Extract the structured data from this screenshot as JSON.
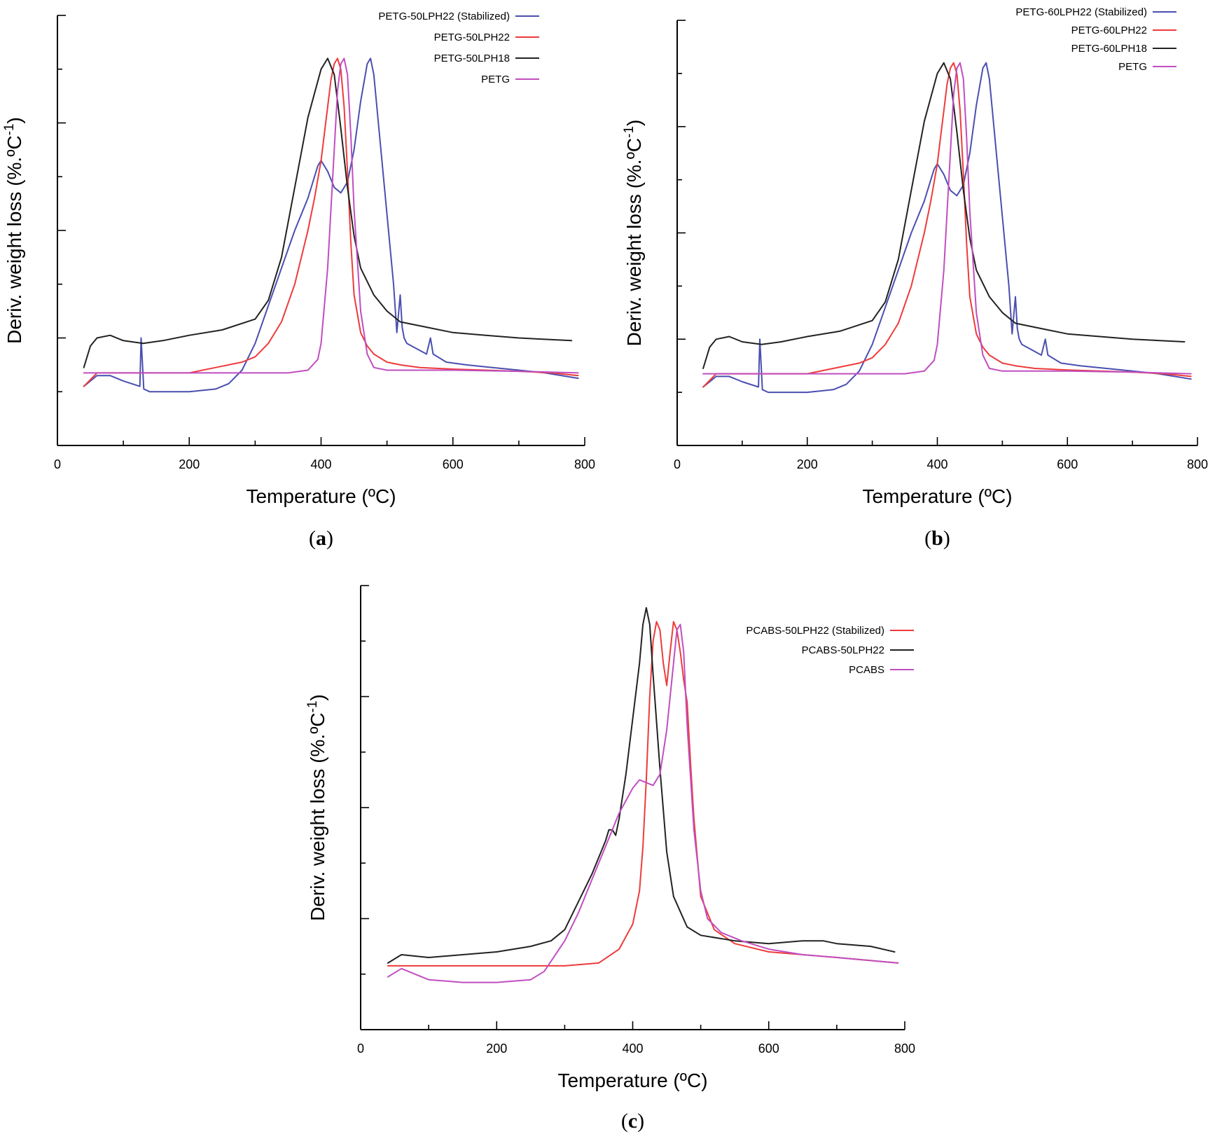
{
  "colors": {
    "blue": "#4a4fb0",
    "red": "#ee3b3b",
    "black": "#222222",
    "magenta": "#c04ec0"
  },
  "chart_data": [
    {
      "type": "line",
      "panel": "(a)",
      "panel_letter": "a",
      "xlabel": "Temperature (ºC)",
      "ylabel": "Deriv. weight loss (%.ºC",
      "ylabel_sup": "-1",
      "ylabel_tail": ")",
      "xlim": [
        0,
        800
      ],
      "xticks": [
        0,
        200,
        400,
        600,
        800
      ],
      "ylim": [
        0,
        8
      ],
      "yticks_count": 8,
      "yticks_labeled": false,
      "legend_position": "top-right",
      "series": [
        {
          "name": "PETG-50LPH22 (Stabilized)",
          "color": "#4a4fb0",
          "x": [
            40,
            60,
            80,
            100,
            125,
            127,
            131,
            140,
            160,
            200,
            240,
            260,
            280,
            300,
            320,
            340,
            360,
            380,
            395,
            400,
            410,
            420,
            430,
            440,
            450,
            460,
            470,
            475,
            480,
            490,
            500,
            510,
            515,
            520,
            523,
            526,
            530,
            545,
            560,
            566,
            570,
            590,
            620,
            660,
            700,
            740,
            790
          ],
          "y": [
            1.1,
            1.3,
            1.3,
            1.2,
            1.1,
            2.0,
            1.05,
            1.0,
            1.0,
            1.0,
            1.05,
            1.15,
            1.4,
            1.9,
            2.6,
            3.3,
            4.0,
            4.6,
            5.2,
            5.3,
            5.1,
            4.8,
            4.7,
            4.9,
            5.5,
            6.4,
            7.1,
            7.2,
            6.9,
            5.6,
            4.3,
            3.0,
            2.1,
            2.8,
            2.2,
            2.0,
            1.9,
            1.8,
            1.7,
            2.0,
            1.7,
            1.55,
            1.5,
            1.45,
            1.4,
            1.35,
            1.25
          ]
        },
        {
          "name": "PETG-50LPH22",
          "color": "#ee3b3b",
          "x": [
            40,
            60,
            100,
            150,
            200,
            240,
            280,
            300,
            320,
            340,
            360,
            380,
            390,
            400,
            405,
            410,
            415,
            420,
            425,
            430,
            435,
            440,
            445,
            450,
            460,
            470,
            480,
            500,
            520,
            550,
            600,
            650,
            700,
            750,
            790
          ],
          "y": [
            1.1,
            1.35,
            1.35,
            1.35,
            1.35,
            1.45,
            1.55,
            1.65,
            1.9,
            2.3,
            3.0,
            4.0,
            4.6,
            5.3,
            5.8,
            6.3,
            6.8,
            7.1,
            7.2,
            7.0,
            6.3,
            5.1,
            3.8,
            2.8,
            2.1,
            1.85,
            1.7,
            1.55,
            1.5,
            1.45,
            1.42,
            1.4,
            1.38,
            1.35,
            1.3
          ]
        },
        {
          "name": "PETG-50LPH18",
          "color": "#222222",
          "x": [
            40,
            50,
            60,
            80,
            100,
            130,
            160,
            200,
            250,
            300,
            320,
            340,
            360,
            380,
            400,
            410,
            420,
            430,
            440,
            450,
            460,
            480,
            500,
            520,
            560,
            600,
            650,
            700,
            780
          ],
          "y": [
            1.45,
            1.85,
            2.0,
            2.05,
            1.95,
            1.9,
            1.95,
            2.05,
            2.15,
            2.35,
            2.7,
            3.5,
            4.8,
            6.1,
            7.0,
            7.2,
            6.9,
            5.9,
            4.8,
            3.9,
            3.3,
            2.8,
            2.5,
            2.3,
            2.2,
            2.1,
            2.05,
            2.0,
            1.95
          ]
        },
        {
          "name": "PETG",
          "color": "#c04ec0",
          "x": [
            40,
            100,
            200,
            300,
            350,
            380,
            395,
            400,
            410,
            420,
            425,
            430,
            435,
            440,
            445,
            450,
            460,
            470,
            480,
            500,
            600,
            700,
            790
          ],
          "y": [
            1.35,
            1.35,
            1.35,
            1.35,
            1.35,
            1.4,
            1.6,
            1.9,
            3.3,
            5.5,
            6.6,
            7.1,
            7.2,
            6.9,
            5.8,
            4.4,
            2.5,
            1.7,
            1.45,
            1.4,
            1.4,
            1.38,
            1.35
          ]
        }
      ]
    },
    {
      "type": "line",
      "panel": "(b)",
      "panel_letter": "b",
      "xlabel": "Temperature (ºC)",
      "ylabel": "Deriv. weight loss (%.ºC",
      "ylabel_sup": "-1",
      "ylabel_tail": ")",
      "xlim": [
        0,
        800
      ],
      "xticks": [
        0,
        200,
        400,
        600,
        800
      ],
      "ylim": [
        0,
        8
      ],
      "yticks_count": 8,
      "yticks_labeled": false,
      "legend_position": "top-right",
      "series": [
        {
          "name": "PETG-60LPH22 (Stabilized)",
          "color": "#4a4fb0",
          "x": [
            40,
            60,
            80,
            100,
            125,
            127,
            131,
            140,
            160,
            200,
            240,
            260,
            280,
            300,
            320,
            340,
            360,
            380,
            395,
            400,
            410,
            420,
            430,
            440,
            450,
            460,
            470,
            475,
            480,
            490,
            500,
            510,
            515,
            520,
            523,
            526,
            530,
            545,
            560,
            566,
            570,
            590,
            620,
            660,
            700,
            740,
            790
          ],
          "y": [
            1.1,
            1.3,
            1.3,
            1.2,
            1.1,
            2.0,
            1.05,
            1.0,
            1.0,
            1.0,
            1.05,
            1.15,
            1.4,
            1.9,
            2.6,
            3.3,
            4.0,
            4.6,
            5.2,
            5.3,
            5.1,
            4.8,
            4.7,
            4.9,
            5.5,
            6.4,
            7.1,
            7.2,
            6.9,
            5.6,
            4.3,
            3.0,
            2.1,
            2.8,
            2.2,
            2.0,
            1.9,
            1.8,
            1.7,
            2.0,
            1.7,
            1.55,
            1.5,
            1.45,
            1.4,
            1.35,
            1.25
          ]
        },
        {
          "name": "PETG-60LPH22",
          "color": "#ee3b3b",
          "x": [
            40,
            60,
            100,
            150,
            200,
            240,
            280,
            300,
            320,
            340,
            360,
            380,
            390,
            400,
            405,
            410,
            415,
            420,
            425,
            430,
            435,
            440,
            445,
            450,
            460,
            470,
            480,
            500,
            520,
            550,
            600,
            650,
            700,
            750,
            790
          ],
          "y": [
            1.1,
            1.35,
            1.35,
            1.35,
            1.35,
            1.45,
            1.55,
            1.65,
            1.9,
            2.3,
            3.0,
            4.0,
            4.6,
            5.3,
            5.8,
            6.3,
            6.8,
            7.1,
            7.2,
            7.0,
            6.3,
            5.1,
            3.8,
            2.8,
            2.1,
            1.85,
            1.7,
            1.55,
            1.5,
            1.45,
            1.42,
            1.4,
            1.38,
            1.35,
            1.3
          ]
        },
        {
          "name": "PETG-60LPH18",
          "color": "#222222",
          "x": [
            40,
            50,
            60,
            80,
            100,
            130,
            160,
            200,
            250,
            300,
            320,
            340,
            360,
            380,
            400,
            410,
            420,
            430,
            440,
            450,
            460,
            480,
            500,
            520,
            560,
            600,
            650,
            700,
            780
          ],
          "y": [
            1.45,
            1.85,
            2.0,
            2.05,
            1.95,
            1.9,
            1.95,
            2.05,
            2.15,
            2.35,
            2.7,
            3.5,
            4.8,
            6.1,
            7.0,
            7.2,
            6.9,
            5.9,
            4.8,
            3.9,
            3.3,
            2.8,
            2.5,
            2.3,
            2.2,
            2.1,
            2.05,
            2.0,
            1.95
          ]
        },
        {
          "name": "PETG",
          "color": "#c04ec0",
          "x": [
            40,
            100,
            200,
            300,
            350,
            380,
            395,
            400,
            410,
            420,
            425,
            430,
            435,
            440,
            445,
            450,
            460,
            470,
            480,
            500,
            600,
            700,
            790
          ],
          "y": [
            1.35,
            1.35,
            1.35,
            1.35,
            1.35,
            1.4,
            1.6,
            1.9,
            3.3,
            5.5,
            6.6,
            7.1,
            7.2,
            6.9,
            5.8,
            4.4,
            2.5,
            1.7,
            1.45,
            1.4,
            1.4,
            1.38,
            1.35
          ]
        }
      ]
    },
    {
      "type": "line",
      "panel": "(c)",
      "panel_letter": "c",
      "xlabel": "Temperature (ºC)",
      "ylabel": "Deriv. weight loss (%.ºC",
      "ylabel_sup": "-1",
      "ylabel_tail": ")",
      "xlim": [
        0,
        800
      ],
      "xticks": [
        0,
        200,
        400,
        600,
        800
      ],
      "ylim": [
        0,
        8
      ],
      "yticks_count": 8,
      "yticks_labeled": false,
      "legend_position": "top-right",
      "series": [
        {
          "name": "PCABS-50LPH22 (Stabilized)",
          "color": "#ee3b3b",
          "x": [
            40,
            100,
            200,
            300,
            350,
            380,
            400,
            410,
            415,
            420,
            425,
            430,
            435,
            440,
            445,
            450,
            455,
            460,
            465,
            470,
            475,
            480,
            485,
            490,
            500,
            520,
            550,
            600,
            700,
            790
          ],
          "y": [
            1.15,
            1.15,
            1.15,
            1.15,
            1.2,
            1.45,
            1.9,
            2.5,
            3.3,
            4.5,
            6.0,
            7.0,
            7.35,
            7.2,
            6.6,
            6.2,
            6.8,
            7.35,
            7.2,
            6.8,
            6.3,
            5.9,
            4.8,
            3.8,
            2.4,
            1.8,
            1.55,
            1.4,
            1.3,
            1.2
          ]
        },
        {
          "name": "PCABS-50LPH22",
          "color": "#222222",
          "x": [
            40,
            60,
            100,
            150,
            200,
            250,
            280,
            300,
            320,
            340,
            360,
            365,
            370,
            375,
            380,
            390,
            400,
            410,
            415,
            420,
            425,
            430,
            440,
            450,
            460,
            480,
            500,
            550,
            600,
            650,
            680,
            700,
            750,
            785
          ],
          "y": [
            1.2,
            1.35,
            1.3,
            1.35,
            1.4,
            1.5,
            1.6,
            1.8,
            2.3,
            2.8,
            3.4,
            3.6,
            3.6,
            3.5,
            3.8,
            4.6,
            5.6,
            6.6,
            7.3,
            7.6,
            7.3,
            6.4,
            4.7,
            3.2,
            2.4,
            1.85,
            1.7,
            1.6,
            1.55,
            1.6,
            1.6,
            1.55,
            1.5,
            1.4
          ]
        },
        {
          "name": "PCABS",
          "color": "#c04ec0",
          "x": [
            40,
            60,
            80,
            100,
            150,
            200,
            250,
            270,
            300,
            320,
            340,
            360,
            380,
            400,
            410,
            420,
            430,
            440,
            450,
            460,
            465,
            470,
            475,
            480,
            490,
            500,
            510,
            530,
            560,
            600,
            650,
            700,
            790
          ],
          "y": [
            0.95,
            1.1,
            1.0,
            0.9,
            0.85,
            0.85,
            0.9,
            1.05,
            1.6,
            2.1,
            2.7,
            3.3,
            3.9,
            4.35,
            4.5,
            4.45,
            4.4,
            4.6,
            5.4,
            6.6,
            7.2,
            7.3,
            6.8,
            5.5,
            3.6,
            2.5,
            2.0,
            1.75,
            1.6,
            1.45,
            1.35,
            1.3,
            1.2
          ]
        }
      ]
    }
  ]
}
